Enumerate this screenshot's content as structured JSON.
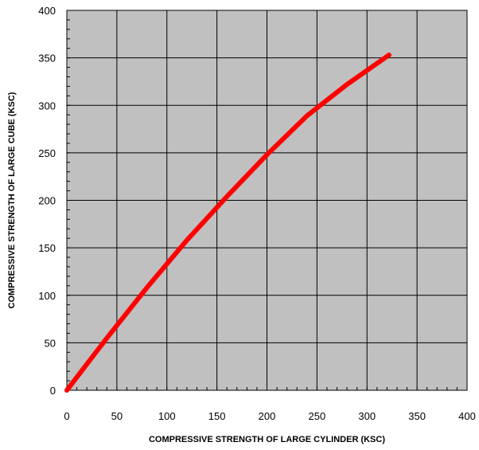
{
  "chart_data": {
    "type": "line",
    "xlabel": "COMPRESSIVE STRENGTH OF LARGE CYLINDER (KSC)",
    "ylabel": "COMPRESSIVE STRENGTH OF LARGE CUBE (KSC)",
    "xlim": [
      0,
      400
    ],
    "ylim": [
      0,
      400
    ],
    "xticks": [
      0,
      50,
      100,
      150,
      200,
      250,
      300,
      350,
      400
    ],
    "yticks": [
      0,
      50,
      100,
      150,
      200,
      250,
      300,
      350,
      400
    ],
    "grid": true,
    "legend": "none",
    "series": [
      {
        "x": [
          0,
          40,
          80,
          120,
          160,
          200,
          240,
          280,
          322
        ],
        "y": [
          0,
          55,
          108,
          158,
          204,
          248,
          289,
          322,
          353
        ],
        "color": "#ff0000"
      }
    ],
    "plot_background": "#c0c0c0",
    "grid_color": "#000000"
  }
}
